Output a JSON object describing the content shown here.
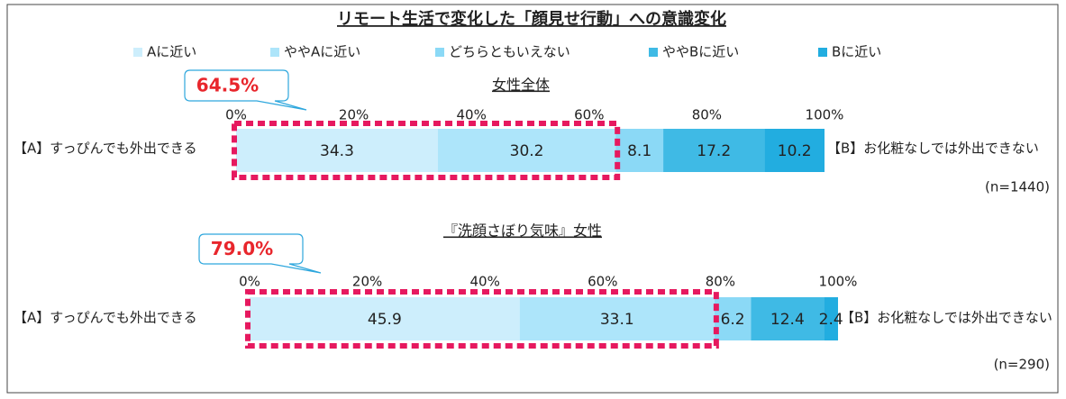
{
  "title": "リモート生活で変化した「顔見せ行動」への意識変化",
  "chart_data": [
    {
      "type": "stacked-bar",
      "subtitle": "女性全体",
      "left_label": "【A】すっぴんでも外出できる",
      "right_label": "【B】お化粧なしでは外出できない",
      "note": "(n=1440)",
      "highlight": {
        "value": 64.5,
        "label": "64.5%"
      },
      "xlim": [
        0,
        100
      ],
      "xticks": [
        {
          "value": 0,
          "label": "0%"
        },
        {
          "value": 20,
          "label": "20%"
        },
        {
          "value": 40,
          "label": "40%"
        },
        {
          "value": 60,
          "label": "60%"
        },
        {
          "value": 80,
          "label": "80%"
        },
        {
          "value": 100,
          "label": "100%"
        }
      ],
      "series": [
        {
          "name": "Aに近い",
          "color": "#cdeefc",
          "values": [
            34.3
          ]
        },
        {
          "name": "ややAに近い",
          "color": "#ade5fa",
          "values": [
            30.2
          ]
        },
        {
          "name": "どちらともいえない",
          "color": "#8bd9f6",
          "values": [
            8.1
          ]
        },
        {
          "name": "ややBに近い",
          "color": "#3fbae5",
          "values": [
            17.2
          ]
        },
        {
          "name": "Bに近い",
          "color": "#22ade0",
          "values": [
            10.2
          ]
        }
      ]
    },
    {
      "type": "stacked-bar",
      "subtitle": "『洗顔さぼり気味』女性",
      "left_label": "【A】すっぴんでも外出できる",
      "right_label": "【B】お化粧なしでは外出できない",
      "note": "(n=290)",
      "highlight": {
        "value": 79.0,
        "label": "79.0%"
      },
      "xlim": [
        0,
        100
      ],
      "xticks": [
        {
          "value": 0,
          "label": "0%"
        },
        {
          "value": 20,
          "label": "20%"
        },
        {
          "value": 40,
          "label": "40%"
        },
        {
          "value": 60,
          "label": "60%"
        },
        {
          "value": 80,
          "label": "80%"
        },
        {
          "value": 100,
          "label": "100%"
        }
      ],
      "series": [
        {
          "name": "Aに近い",
          "color": "#cdeefc",
          "values": [
            45.9
          ]
        },
        {
          "name": "ややAに近い",
          "color": "#ade5fa",
          "values": [
            33.1
          ]
        },
        {
          "name": "どちらともいえない",
          "color": "#8bd9f6",
          "values": [
            6.2
          ]
        },
        {
          "name": "ややBに近い",
          "color": "#3fbae5",
          "values": [
            12.4
          ]
        },
        {
          "name": "Bに近い",
          "color": "#22ade0",
          "values": [
            2.4
          ]
        }
      ]
    }
  ]
}
